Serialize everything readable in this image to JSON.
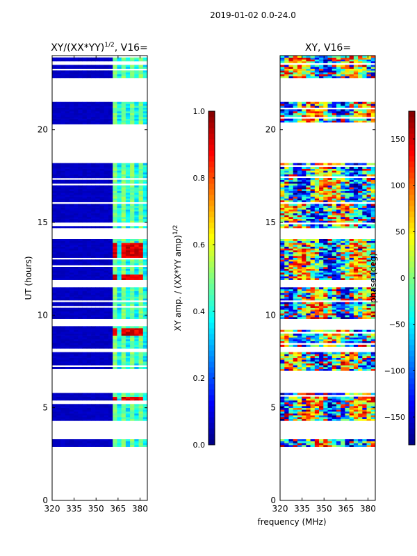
{
  "figure": {
    "suptitle": "2019-01-02 0.0-24.0",
    "xlabel_shared": "frequency (MHz)"
  },
  "chart_data": [
    {
      "type": "heatmap",
      "title_main": "XY/(XX*YY)",
      "title_sup": "1/2",
      "title_tail": ", V16=",
      "xlabel": "",
      "ylabel": "UT (hours)",
      "xlim": [
        320,
        385
      ],
      "ylim": [
        0,
        24
      ],
      "xticks": [
        320,
        335,
        350,
        365,
        380
      ],
      "yticks": [
        0,
        5,
        10,
        15,
        20
      ],
      "colormap": "jet",
      "colorbar": {
        "label_main": "XY amp. / (XX*YY amp)",
        "label_sup": "1/2",
        "range": [
          0.0,
          1.0
        ],
        "ticks": [
          0.0,
          0.2,
          0.4,
          0.6,
          0.8,
          1.0
        ],
        "tick_labels": [
          "0.0",
          "0.2",
          "0.4",
          "0.6",
          "0.8",
          "1.0"
        ]
      },
      "data_blocks_ut": [
        [
          2.9,
          3.3
        ],
        [
          4.3,
          5.8
        ],
        [
          7.0,
          8.0
        ],
        [
          8.2,
          9.4
        ],
        [
          9.8,
          11.5
        ],
        [
          11.9,
          14.1
        ],
        [
          14.7,
          16.0
        ],
        [
          16.1,
          18.2
        ],
        [
          20.3,
          21.5
        ],
        [
          22.8,
          24.0
        ]
      ],
      "low_freq_value": 0.05,
      "high_freq_start_mhz": 362,
      "hot_spots_ut": [
        [
          5.3,
          5.6
        ],
        [
          8.9,
          9.3
        ],
        [
          11.9,
          12.2
        ],
        [
          13.0,
          13.9
        ]
      ],
      "notes": "amplitude near 0 below ~362 MHz; structured 0.3-0.8 above with vertical stripes near 363, 370, 375, 380 MHz"
    },
    {
      "type": "heatmap",
      "title_main": "XY, V16=",
      "title_sup": "",
      "title_tail": "",
      "xlabel": "",
      "ylabel": "",
      "xlim": [
        320,
        385
      ],
      "ylim": [
        0,
        24
      ],
      "xticks": [
        320,
        335,
        350,
        365,
        380
      ],
      "yticks": [
        0,
        5,
        10,
        15,
        20
      ],
      "colormap": "jet",
      "colorbar": {
        "label_main": "phase (deg)",
        "label_sup": "",
        "range": [
          -180,
          180
        ],
        "ticks": [
          -150,
          -100,
          -50,
          0,
          50,
          100,
          150
        ],
        "tick_labels": [
          "−150",
          "−100",
          "−50",
          "0",
          "50",
          "100",
          "150"
        ]
      },
      "data_blocks_ut": [
        [
          2.9,
          3.3
        ],
        [
          4.3,
          5.8
        ],
        [
          7.0,
          8.0
        ],
        [
          8.2,
          9.4
        ],
        [
          9.8,
          11.5
        ],
        [
          11.9,
          14.1
        ],
        [
          14.7,
          16.0
        ],
        [
          16.1,
          18.2
        ],
        [
          20.3,
          21.5
        ],
        [
          22.8,
          24.0
        ]
      ],
      "notes": "phase values spanning -180 to 180 deg; mostly cyan/green/blue with orange-red bands"
    }
  ]
}
